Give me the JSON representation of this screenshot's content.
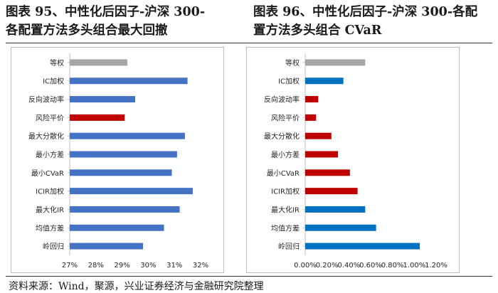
{
  "titles": {
    "left": "图表 95、中性化后因子-沪深 300-\n各配置方法多头组合最大回撤",
    "right": "图表 96、中性化后因子-沪深 300-各配\n置方法多头组合 CVaR"
  },
  "source": "资料来源：Wind，聚源，兴业证券经济与金融研究院整理",
  "colors": {
    "gray": "#a6a6a6",
    "blue": "#4472c4",
    "red": "#c00000",
    "blue2": "#0070c0"
  },
  "chart_data": [
    {
      "type": "bar",
      "orientation": "horizontal",
      "title": "中性化后因子-沪深 300-各配置方法多头组合最大回撤",
      "categories": [
        "等权",
        "IC加权",
        "反向波动率",
        "风险平价",
        "最大分散化",
        "最小方差",
        "最小CVaR",
        "ICIR加权",
        "最大化IR",
        "均值方差",
        "岭回归"
      ],
      "values": [
        29.2,
        31.5,
        29.5,
        29.1,
        31.4,
        31.1,
        30.9,
        31.7,
        31.2,
        30.6,
        29.8
      ],
      "bar_colors": [
        "gray",
        "blue",
        "blue",
        "red",
        "blue",
        "blue",
        "blue",
        "blue",
        "blue",
        "blue",
        "blue"
      ],
      "xlim": [
        27,
        32
      ],
      "ticks": [
        27,
        28,
        29,
        30,
        31,
        32
      ],
      "tick_labels": [
        "27%",
        "28%",
        "29%",
        "30%",
        "31%",
        "32%"
      ]
    },
    {
      "type": "bar",
      "orientation": "horizontal",
      "title": "中性化后因子-沪深 300-各配置方法多头组合 CVaR",
      "categories": [
        "等权",
        "IC加权",
        "反向波动率",
        "风险平价",
        "最大分散化",
        "最小方差",
        "最小CVaR",
        "ICIR加权",
        "最大化IR",
        "均值方差",
        "岭回归"
      ],
      "values": [
        0.55,
        0.35,
        0.12,
        0.1,
        0.24,
        0.3,
        0.41,
        0.48,
        0.55,
        0.65,
        1.05
      ],
      "bar_colors": [
        "gray",
        "blue2",
        "red",
        "red",
        "red",
        "red",
        "red",
        "red",
        "blue2",
        "blue2",
        "blue2"
      ],
      "xlim": [
        0,
        1.2
      ],
      "ticks": [
        0,
        0.2,
        0.4,
        0.6,
        0.8,
        1.0,
        1.2
      ],
      "tick_labels": [
        "0.00%",
        "0.20%",
        "0.40%",
        "0.60%",
        "0.80%",
        "1.00%",
        "1.20%"
      ]
    }
  ]
}
